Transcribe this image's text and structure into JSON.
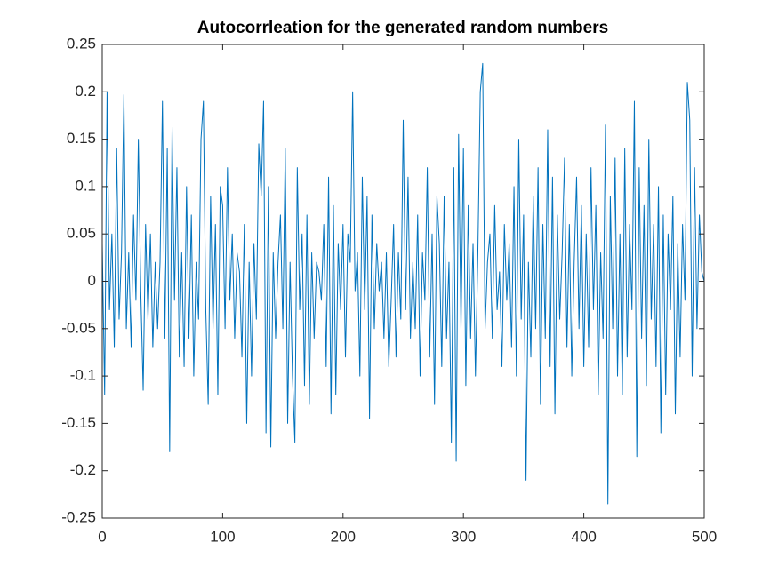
{
  "chart_data": {
    "type": "line",
    "title": "Autocorrleation for the generated random numbers",
    "color": "#0072bd",
    "box": true,
    "xlim": [
      0,
      500
    ],
    "xticks": [
      0,
      100,
      200,
      300,
      400,
      500
    ],
    "ylim": [
      -0.25,
      0.25
    ],
    "yticks": [
      -0.25,
      -0.2,
      -0.15,
      -0.1,
      -0.05,
      0,
      0.05,
      0.1,
      0.15,
      0.2,
      0.25
    ],
    "x": [
      0,
      2,
      4,
      6,
      8,
      10,
      12,
      14,
      16,
      18,
      20,
      22,
      24,
      26,
      28,
      30,
      32,
      34,
      36,
      38,
      40,
      42,
      44,
      46,
      48,
      50,
      52,
      54,
      56,
      58,
      60,
      62,
      64,
      66,
      68,
      70,
      72,
      74,
      76,
      78,
      80,
      82,
      84,
      86,
      88,
      90,
      92,
      94,
      96,
      98,
      100,
      102,
      104,
      106,
      108,
      110,
      112,
      114,
      116,
      118,
      120,
      122,
      124,
      126,
      128,
      130,
      132,
      134,
      136,
      138,
      140,
      142,
      144,
      146,
      148,
      150,
      152,
      154,
      156,
      158,
      160,
      162,
      164,
      166,
      168,
      170,
      172,
      174,
      176,
      178,
      180,
      182,
      184,
      186,
      188,
      190,
      192,
      194,
      196,
      198,
      200,
      202,
      204,
      206,
      208,
      210,
      212,
      214,
      216,
      218,
      220,
      222,
      224,
      226,
      228,
      230,
      232,
      234,
      236,
      238,
      240,
      242,
      244,
      246,
      248,
      250,
      252,
      254,
      256,
      258,
      260,
      262,
      264,
      266,
      268,
      270,
      272,
      274,
      276,
      278,
      280,
      282,
      284,
      286,
      288,
      290,
      292,
      294,
      296,
      298,
      300,
      302,
      304,
      306,
      308,
      310,
      312,
      314,
      316,
      318,
      320,
      322,
      324,
      326,
      328,
      330,
      332,
      334,
      336,
      338,
      340,
      342,
      344,
      346,
      348,
      350,
      352,
      354,
      356,
      358,
      360,
      362,
      364,
      366,
      368,
      370,
      372,
      374,
      376,
      378,
      380,
      382,
      384,
      386,
      388,
      390,
      392,
      394,
      396,
      398,
      400,
      402,
      404,
      406,
      408,
      410,
      412,
      414,
      416,
      418,
      420,
      422,
      424,
      426,
      428,
      430,
      432,
      434,
      436,
      438,
      440,
      442,
      444,
      446,
      448,
      450,
      452,
      454,
      456,
      458,
      460,
      462,
      464,
      466,
      468,
      470,
      472,
      474,
      476,
      478,
      480,
      482,
      484,
      486,
      488,
      490,
      492,
      494,
      496,
      498,
      500
    ],
    "values": [
      0.04,
      -0.12,
      0.2,
      -0.03,
      0.05,
      -0.07,
      0.14,
      -0.04,
      0.03,
      0.197,
      -0.05,
      0.03,
      -0.07,
      0.07,
      -0.02,
      0.15,
      -0.01,
      -0.115,
      0.06,
      -0.04,
      0.05,
      -0.07,
      0.02,
      -0.05,
      0.02,
      0.19,
      -0.06,
      0.14,
      -0.18,
      0.163,
      -0.02,
      0.12,
      -0.08,
      0.03,
      -0.09,
      0.1,
      -0.06,
      0.07,
      -0.1,
      0.02,
      -0.04,
      0.15,
      0.19,
      -0.03,
      -0.13,
      0.09,
      -0.05,
      0.06,
      -0.12,
      0.1,
      0.08,
      -0.05,
      0.12,
      -0.02,
      0.05,
      -0.06,
      0.03,
      0.01,
      -0.08,
      0.06,
      -0.15,
      0.02,
      -0.1,
      0.04,
      -0.04,
      0.145,
      0.09,
      0.19,
      -0.16,
      0.1,
      -0.175,
      0.03,
      -0.06,
      0.02,
      0.07,
      -0.05,
      0.14,
      -0.15,
      0.02,
      -0.1,
      -0.17,
      0.12,
      -0.03,
      0.05,
      -0.11,
      0.07,
      -0.13,
      0.03,
      -0.06,
      0.02,
      0.01,
      -0.02,
      0.06,
      -0.09,
      0.11,
      -0.14,
      0.08,
      -0.12,
      0.04,
      -0.03,
      0.06,
      -0.08,
      0.05,
      0.02,
      0.2,
      -0.01,
      0.03,
      -0.1,
      0.11,
      -0.03,
      0.09,
      -0.145,
      0.07,
      -0.05,
      0.04,
      -0.01,
      0.02,
      -0.06,
      0.03,
      -0.09,
      -0.02,
      0.06,
      -0.08,
      0.03,
      -0.04,
      0.17,
      -0.03,
      0.11,
      -0.06,
      0.02,
      -0.05,
      0.07,
      -0.1,
      0.03,
      -0.02,
      0.12,
      -0.08,
      0.05,
      -0.13,
      0.09,
      0.04,
      -0.09,
      0.09,
      -0.06,
      0.02,
      -0.17,
      0.12,
      -0.19,
      0.155,
      -0.05,
      0.14,
      -0.11,
      0.08,
      -0.06,
      0.04,
      -0.1,
      0.03,
      0.2,
      0.23,
      -0.05,
      0.02,
      0.05,
      -0.06,
      0.08,
      -0.03,
      0.01,
      -0.09,
      0.06,
      -0.02,
      0.04,
      -0.07,
      0.1,
      -0.1,
      0.15,
      -0.04,
      0.07,
      -0.21,
      0.02,
      -0.08,
      0.09,
      -0.05,
      0.12,
      -0.13,
      0.06,
      -0.06,
      0.16,
      -0.09,
      0.11,
      -0.14,
      0.07,
      -0.04,
      0.03,
      0.13,
      -0.07,
      0.06,
      -0.1,
      0.02,
      0.11,
      -0.05,
      0.08,
      -0.09,
      0.05,
      -0.07,
      0.12,
      -0.03,
      0.08,
      -0.12,
      0.03,
      -0.06,
      0.165,
      -0.235,
      0.09,
      -0.05,
      0.13,
      -0.1,
      0.05,
      -0.12,
      0.14,
      -0.08,
      0.06,
      -0.03,
      0.19,
      -0.185,
      0.12,
      -0.06,
      0.08,
      -0.11,
      0.15,
      -0.04,
      0.06,
      -0.09,
      0.1,
      -0.16,
      0.07,
      -0.12,
      0.05,
      -0.03,
      0.09,
      -0.14,
      0.04,
      -0.08,
      0.06,
      -0.02,
      0.21,
      0.17,
      -0.1,
      0.12,
      -0.05,
      0.07,
      0.01,
      0
    ]
  }
}
